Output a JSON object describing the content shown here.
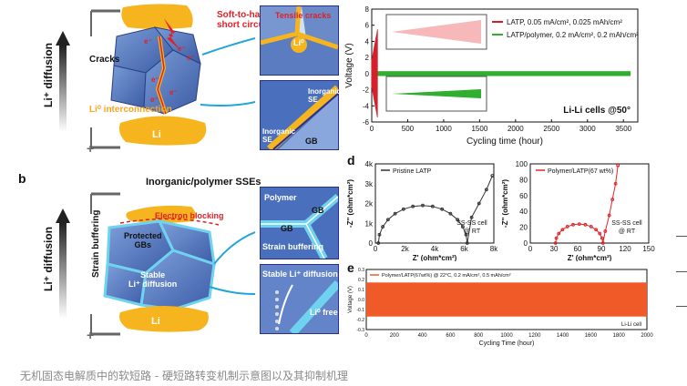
{
  "panel_a": {
    "diffusion_label": "Li⁺ diffusion",
    "soft_to_hard": "Soft-to-hard\nshort circuit",
    "cracks": "Cracks",
    "li0_interconnection": "Li⁰ interconnection",
    "li_label": "Li",
    "tensile_cracks": "Tensile cracks",
    "li0_grain": "Li⁰",
    "inorganic_se_1": "Inorganic\nSE",
    "inorganic_se_2": "Inorganic\nSE",
    "gb": "GB",
    "electron_symbol": "e⁻"
  },
  "panel_b": {
    "letter": "b",
    "title": "Inorganic/polymer SSEs",
    "diffusion_label": "Li⁺ diffusion",
    "strain_buffering_side": "Strain buffering",
    "electron_blocking": "Electron blocking",
    "protected_gbs": "Protected\nGBs",
    "stable_diffusion": "Stable\nLi⁺ diffusion",
    "li_label": "Li",
    "polymer": "Polymer",
    "gb_1": "GB",
    "gb_2": "GB",
    "strain_buffering_inset": "Strain buffering",
    "stable_li_diffusion": "Stable Li⁺ diffusion",
    "li0_free": "Li⁰ free"
  },
  "panel_c": {
    "chart_data": {
      "type": "line",
      "xlabel": "Cycling time (hour)",
      "ylabel": "Voltage (V)",
      "xlim": [
        0,
        3700
      ],
      "ylim": [
        -6,
        8
      ],
      "xticks": [
        0,
        500,
        1000,
        1500,
        2000,
        2500,
        3000,
        3500
      ],
      "yticks": [
        -6,
        -4,
        -2,
        0,
        2,
        4,
        6,
        8
      ],
      "series": [
        {
          "name": "LATP, 0.05 mA/cm², 0.025 mAh/cm²",
          "color": "#d81e2a",
          "x_end": 80,
          "amplitude": 5.5
        },
        {
          "name": "LATP/polymer, 0.2 mA/cm², 0.2 mAh/cm²",
          "color": "#2fae2f",
          "x_end": 3600,
          "amplitude": 0.3
        }
      ],
      "annotation": "Li-Li cells @50°"
    }
  },
  "panel_d": {
    "letter": "d",
    "chart_data": [
      {
        "type": "line",
        "legend": "Pristine LATP",
        "xlabel": "Z' (ohm*cm²)",
        "ylabel": "-Z'' (ohm*cm²)",
        "xticks": [
          "0",
          "2k",
          "4k",
          "6k",
          "8k"
        ],
        "yticks": [
          "0",
          "1k",
          "2k",
          "3k",
          "4k"
        ],
        "xlim": [
          0,
          8000
        ],
        "ylim": [
          0,
          4000
        ],
        "annotation": "SS-SS cell\n@ RT",
        "color": "#333333"
      },
      {
        "type": "line",
        "legend": "Polymer/LATP(67 wt%)",
        "xlabel": "Z' (ohm*cm²)",
        "ylabel": "-Z'' (ohm*cm²)",
        "xticks": [
          "0",
          "30",
          "60",
          "90",
          "120",
          "150"
        ],
        "yticks": [
          "0",
          "20",
          "40",
          "60",
          "80",
          "100"
        ],
        "xlim": [
          0,
          150
        ],
        "ylim": [
          0,
          100
        ],
        "annotation": "SS-SS cell\n@ RT",
        "color": "#e2262b"
      }
    ]
  },
  "panel_e": {
    "letter": "e",
    "chart_data": {
      "type": "line",
      "legend": "Polymer/LATP(67wt%) @ 22°C, 0.2 mA/cm², 0.5 mAh/cm²",
      "xlabel": "Cycling Time (hour)",
      "ylabel": "Voltage (V)",
      "xlim": [
        0,
        2000
      ],
      "ylim": [
        -0.3,
        0.3
      ],
      "xticks": [
        0,
        200,
        400,
        600,
        800,
        1000,
        1200,
        1400,
        1600,
        1800,
        2000
      ],
      "yticks": [
        "-0.3",
        "-0.2",
        "-0.1",
        "0.0",
        "0.1",
        "0.2",
        "0.3"
      ],
      "annotation": "Li-Li cell",
      "color": "#f05a28"
    }
  },
  "caption": "无机固态电解质中的软短路 - 硬短路转变机制示意图以及其抑制机理"
}
